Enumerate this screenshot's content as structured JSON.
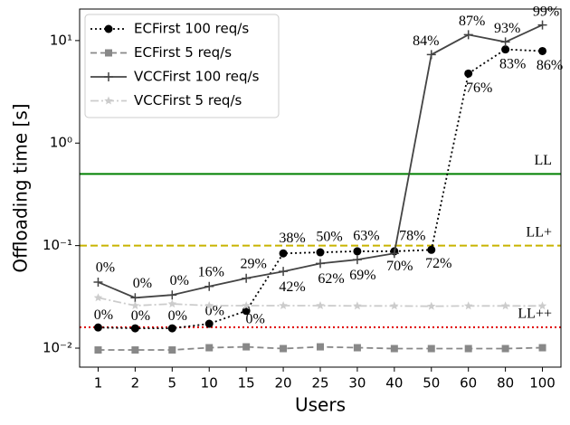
{
  "chart_data": {
    "type": "line",
    "x_label": "Users",
    "y_label": "Offloading time [s]",
    "categories": [
      "1",
      "2",
      "5",
      "10",
      "15",
      "20",
      "25",
      "30",
      "40",
      "50",
      "60",
      "80",
      "100"
    ],
    "log_y": true,
    "ylim": [
      0.00653,
      20.3
    ],
    "yticks": [
      {
        "value": 0.01,
        "label": "10⁻²"
      },
      {
        "value": 0.1,
        "label": "10⁻¹"
      },
      {
        "value": 1,
        "label": "10⁰"
      },
      {
        "value": 10,
        "label": "10¹"
      }
    ],
    "legend": "upper left",
    "series": [
      {
        "name": "ECFirst 100 req/s",
        "color": "#000000",
        "line_color": "#000000",
        "dash": "2,3",
        "marker": "circle",
        "values": [
          0.0159,
          0.0156,
          0.0156,
          0.0173,
          0.0231,
          0.084,
          0.086,
          0.088,
          0.088,
          0.091,
          4.77,
          8.2,
          7.9
        ],
        "labels": [
          "0%",
          "0%",
          "0%",
          "0%",
          "0%",
          "38%",
          "50%",
          "63%",
          "78%",
          "72%",
          "76%",
          "83%",
          "86%"
        ]
      },
      {
        "name": "ECFirst 5 req/s",
        "color": "#888888",
        "line_color": "#888888",
        "dash": "7,4",
        "marker": "square",
        "values": [
          0.0096,
          0.0096,
          0.0096,
          0.0101,
          0.0103,
          0.0099,
          0.0103,
          0.0101,
          0.0099,
          0.0099,
          0.0099,
          0.0099,
          0.0101
        ]
      },
      {
        "name": "VCCFirst 100 req/s",
        "color": "#444444",
        "line_color": "#444444",
        "dash": "none",
        "marker": "plus",
        "values": [
          0.044,
          0.031,
          0.033,
          0.04,
          0.048,
          0.056,
          0.067,
          0.073,
          0.084,
          7.3,
          11.4,
          9.7,
          14.2
        ],
        "labels": [
          "0%",
          "0%",
          "0%",
          "16%",
          "29%",
          "42%",
          "62%",
          "69%",
          "70%",
          "84%",
          "87%",
          "93%",
          "99%"
        ]
      },
      {
        "name": "VCCFirst 5 req/s",
        "color": "#cccccc",
        "line_color": "#cccccc",
        "dash": "9,3,2,3",
        "marker": "star",
        "values": [
          0.031,
          0.026,
          0.027,
          0.026,
          0.026,
          0.026,
          0.026,
          0.0258,
          0.0258,
          0.0256,
          0.0258,
          0.0258,
          0.0258
        ]
      }
    ],
    "hlines": [
      {
        "label": "LL",
        "value": 0.5,
        "color": "#008000",
        "dash": "none"
      },
      {
        "label": "LL+",
        "value": 0.1,
        "color": "#c8b400",
        "dash": "8,4"
      },
      {
        "label": "LL++",
        "value": 0.016,
        "color": "#e00000",
        "dash": "2,3"
      }
    ]
  }
}
